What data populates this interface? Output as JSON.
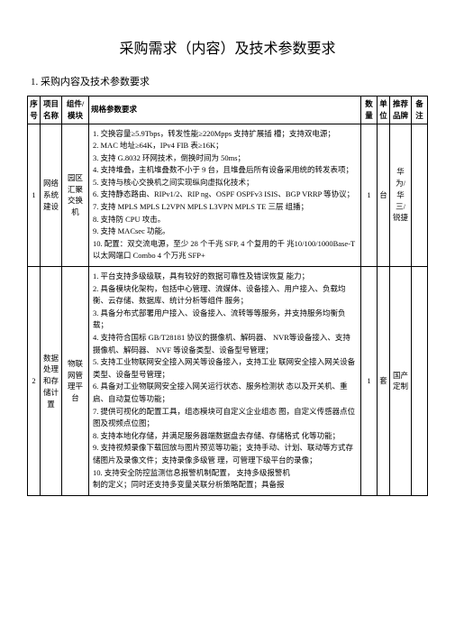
{
  "title": "采购需求（内容）及技术参数要求",
  "section_heading": "1. 采购内容及技术参数要求",
  "headers": {
    "seq": "序号",
    "proj": "项目名称",
    "comp": "组件/模块",
    "spec": "规格参数要求",
    "qty": "数量",
    "unit": "单位",
    "brand": "推荐品牌",
    "remark": "备注"
  },
  "rows": [
    {
      "seq": "1",
      "proj": "网络系统建设",
      "comp": "园区汇聚交换机",
      "spec": [
        "1. 交换容量≥5.9Tbps，转发性能≥220Mpps 支持扩展插 槽；支持双电源；",
        "2. MAC 地址≥64K，IPv4 FIB 表≥16K；",
        "3. 支持 G.8032 环网技术，倒换时间为 50ms；",
        "4. 支持堆叠，主机堆叠数不小于 9 台，且堆叠后所有设备采用统的转发表项；",
        "5. 支持与核心交换机之间实现纵向虚拟化技术；",
        "6. 支持静态路由、RIPv1/2、RIP ng、OSPF OSPFv3 ISIS、BGP VRRP 等协议；",
        "7. 支持 MPLS MPLS L2VPN MPLS L3VPN MPLS TE 三层 组播；",
        "8. 支持防 CPU 攻击。",
        "9. 支持 MACsec 功能。",
        "10. 配置：双交流电源，至少 28 个千兆 SFP, 4 个复用的千 兆10/100/1000Base-T 以太网端口 Combo 4 个万兆 SFP+"
      ],
      "qty": "1",
      "unit": "台",
      "brand": "华为/华三/锐捷",
      "remark": ""
    },
    {
      "seq": "2",
      "proj": "数据处理和存储计置",
      "comp": "物联网管理平台",
      "spec": [
        "",
        "1. 平台支持多级级联，具有较好的数据可靠性及错误恢复 能力；",
        "2. 具备模块化架构，包括中心管理、流媒体、设备接入、用户接入、负载均衡、云存储、数据库、统计分析等组件 服务；",
        "3. 具备分布式部署用户接入、设备接入、流转等等服务，并支持服务均衡负载；",
        "4. 支持符合国标 GB/T28181 协议的摄像机、解码器、 NVR等设备接入、支持摄像机、解码器、 NVF 等设备类型、设备型号管理；",
        "5. 支持工业物联网安全接入网关等设备接入，支持工业 联网安全接入网关设备类型、设备型号管理；",
        "6. 具备对工业物联网安全接入网关运行状态、服务检测状 态以及开关机、重启、自动复位等功能；",
        "7. 提供可视化的配置工具，组态模块可自定义企业组态 图，自定义传感器点位图及视频点位图；",
        "8. 支持本地化存储，并满足服务器端数据盘去存储、存储格式 化等功能；",
        "9. 支持视频录像下载回放与图片预览等功能；支持手动、计划、联动等方式存储图片及录像文件；支持录像多级管 理，可管理下级平台的录像；",
        "10. 支持安全防控监测信息报警机制配置， 支持多级报警机",
        "制的定义；同时还支持多变量关联分析策略配置；具备报"
      ],
      "qty": "1",
      "unit": "套",
      "brand": "国产定制",
      "remark": ""
    }
  ]
}
